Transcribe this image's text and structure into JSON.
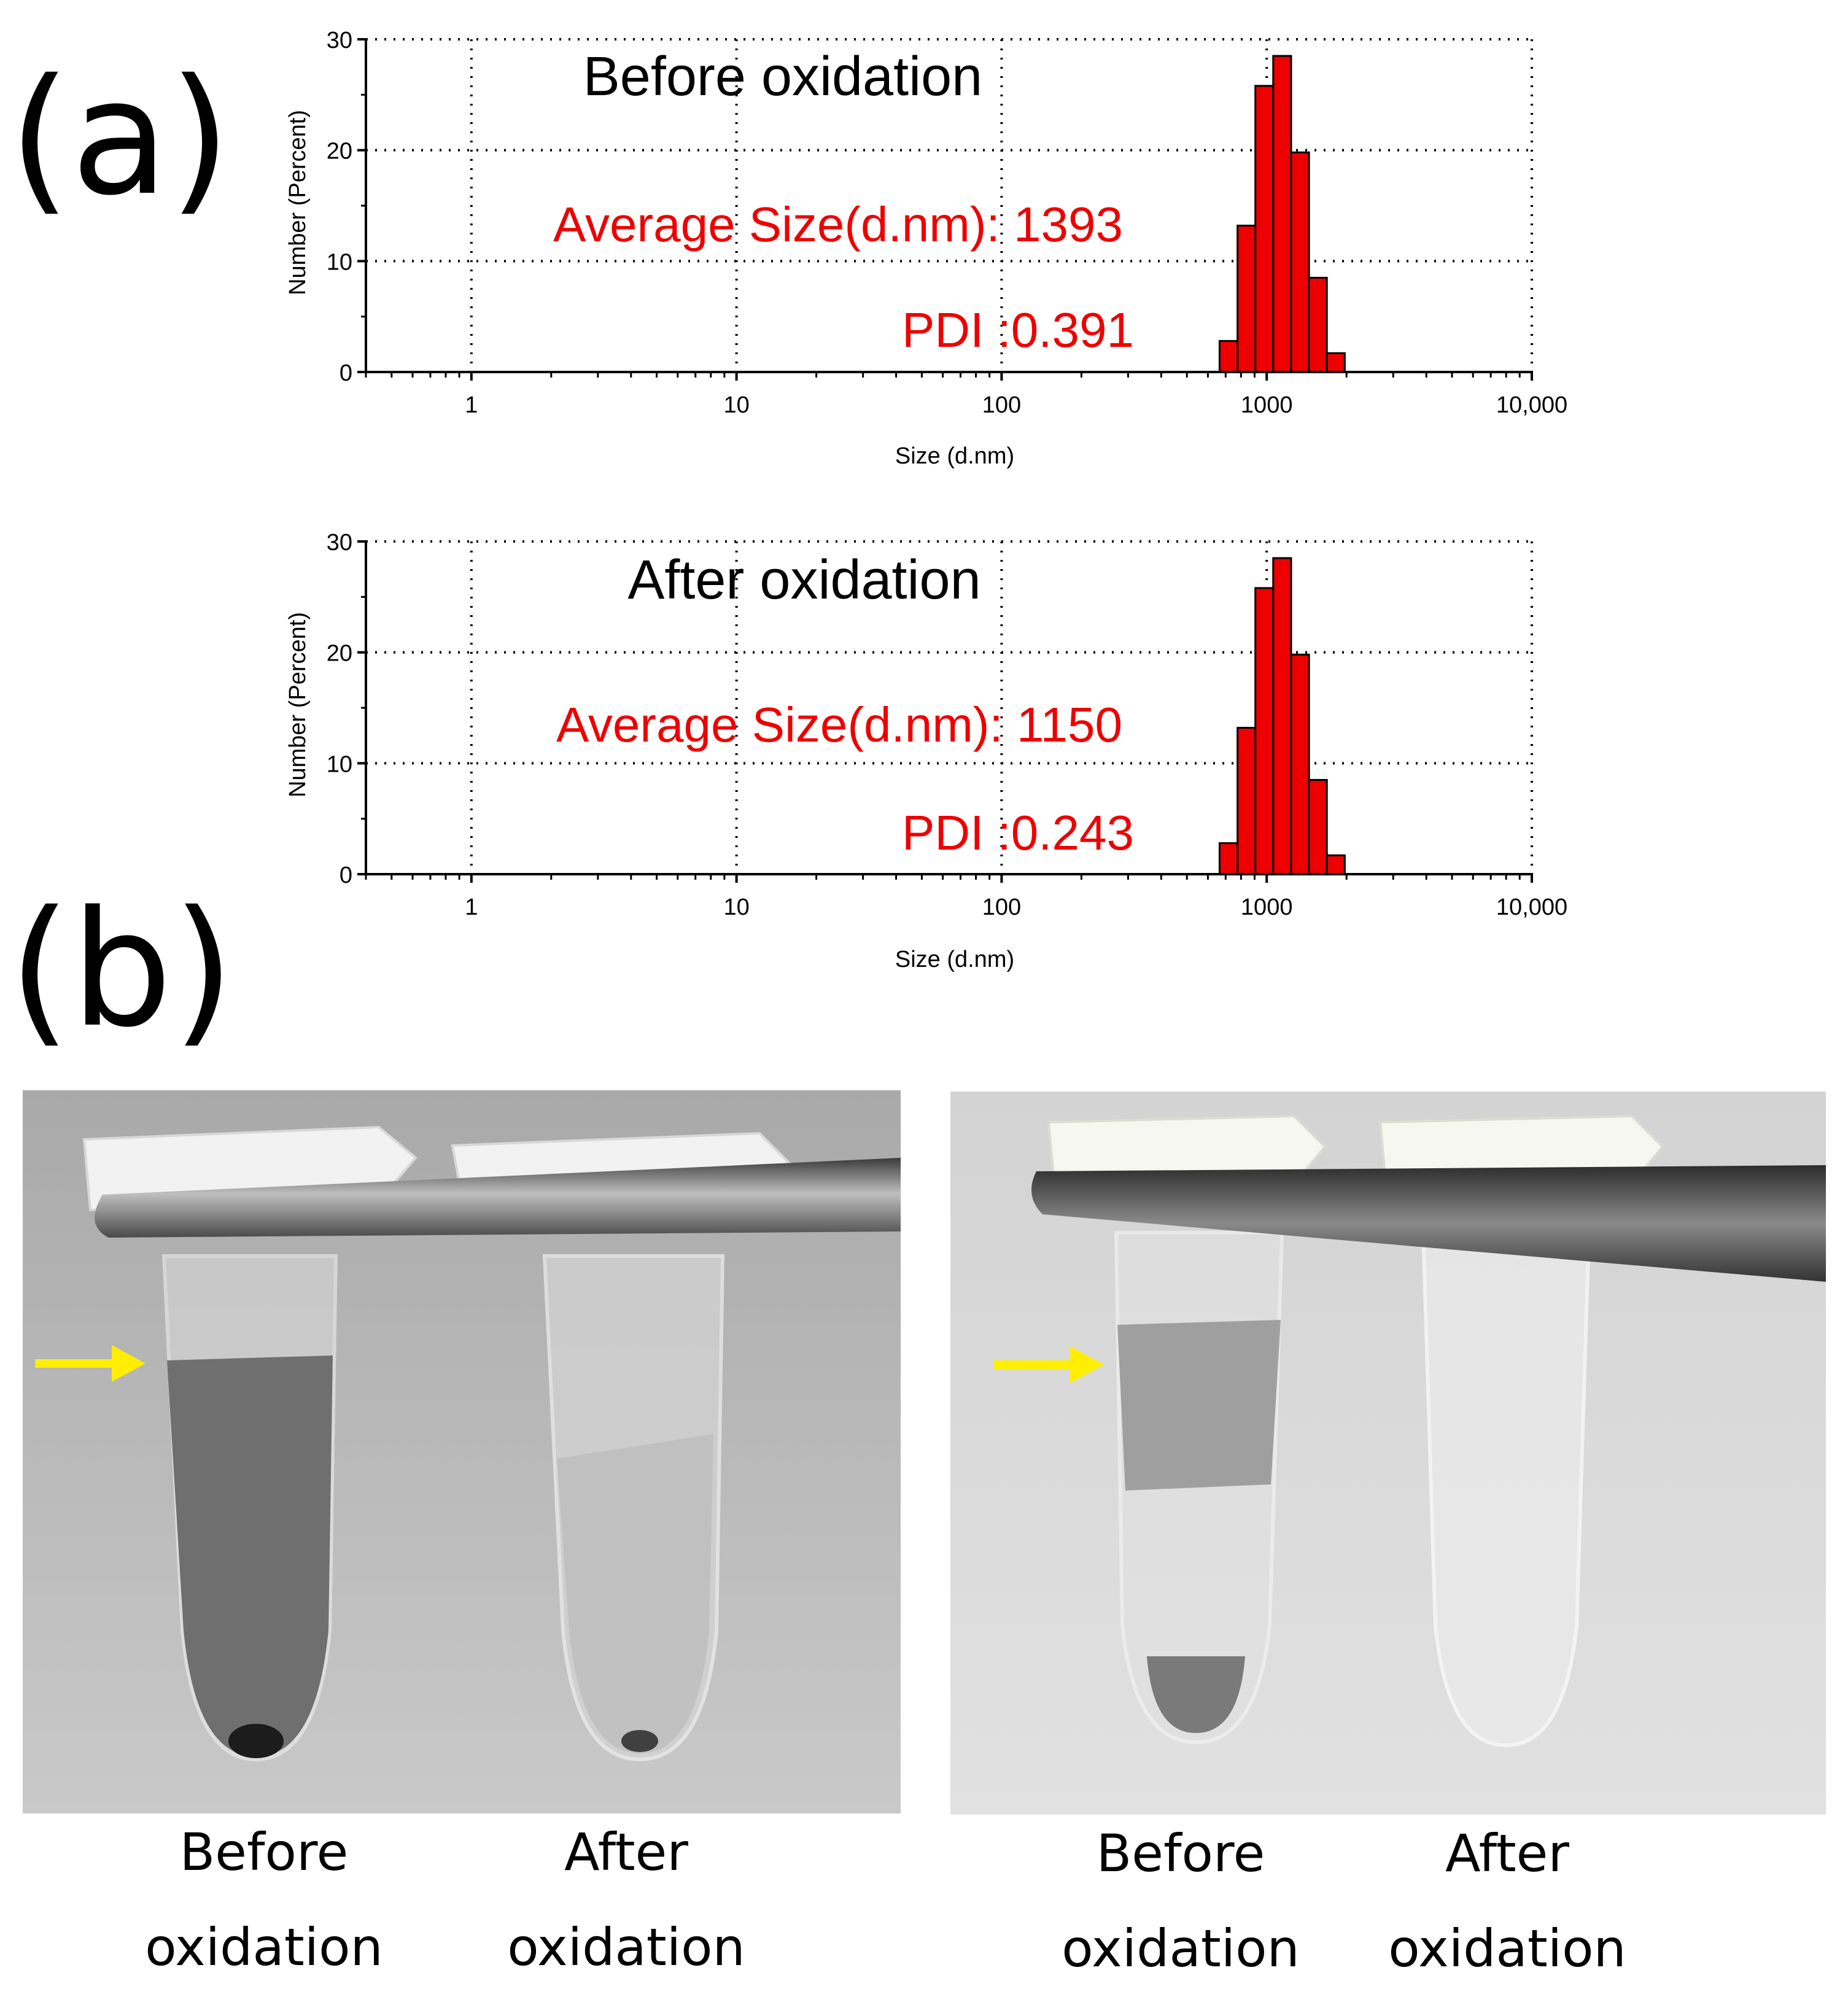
{
  "panels": {
    "a": "(a)",
    "b": "(b)"
  },
  "chart_data": [
    {
      "type": "bar",
      "title": "Before oxidation",
      "xlabel": "Size (d.nm)",
      "ylabel": "Number (Percent)",
      "xscale": "log",
      "xlim": [
        0.4,
        10000
      ],
      "ylim": [
        0,
        30
      ],
      "xticks": [
        "1",
        "10",
        "100",
        "1000",
        "10,000"
      ],
      "yticks": [
        "0",
        "10",
        "20",
        "30"
      ],
      "grid": true,
      "color": "#ee0000",
      "annotations": {
        "average_size": "Average Size(d.nm): 1393",
        "pdi": "PDI :0.391"
      },
      "bins": [
        {
          "from": 664,
          "to": 776,
          "value": 2.8
        },
        {
          "from": 776,
          "to": 906,
          "value": 13.2
        },
        {
          "from": 906,
          "to": 1058,
          "value": 25.8
        },
        {
          "from": 1058,
          "to": 1236,
          "value": 28.5
        },
        {
          "from": 1236,
          "to": 1444,
          "value": 19.8
        },
        {
          "from": 1444,
          "to": 1686,
          "value": 8.5
        },
        {
          "from": 1686,
          "to": 1970,
          "value": 1.7
        }
      ]
    },
    {
      "type": "bar",
      "title": "After oxidation",
      "xlabel": "Size (d.nm)",
      "ylabel": "Number (Percent)",
      "xscale": "log",
      "xlim": [
        0.4,
        10000
      ],
      "ylim": [
        0,
        30
      ],
      "xticks": [
        "1",
        "10",
        "100",
        "1000",
        "10,000"
      ],
      "yticks": [
        "0",
        "10",
        "20",
        "30"
      ],
      "grid": true,
      "color": "#ee0000",
      "annotations": {
        "average_size": "Average Size(d.nm): 1150",
        "pdi": "PDI :0.243"
      },
      "bins": [
        {
          "from": 664,
          "to": 776,
          "value": 2.8
        },
        {
          "from": 776,
          "to": 906,
          "value": 13.2
        },
        {
          "from": 906,
          "to": 1058,
          "value": 25.8
        },
        {
          "from": 1058,
          "to": 1236,
          "value": 28.5
        },
        {
          "from": 1236,
          "to": 1444,
          "value": 19.8
        },
        {
          "from": 1444,
          "to": 1686,
          "value": 8.5
        },
        {
          "from": 1686,
          "to": 1970,
          "value": 1.7
        }
      ]
    }
  ],
  "photos": [
    {
      "captions": [
        {
          "line1": "Before",
          "line2": "oxidation"
        },
        {
          "line1": "After",
          "line2": "oxidation"
        }
      ]
    },
    {
      "captions": [
        {
          "line1": "Before",
          "line2": "oxidation"
        },
        {
          "line1": "After",
          "line2": "oxidation"
        }
      ]
    }
  ]
}
